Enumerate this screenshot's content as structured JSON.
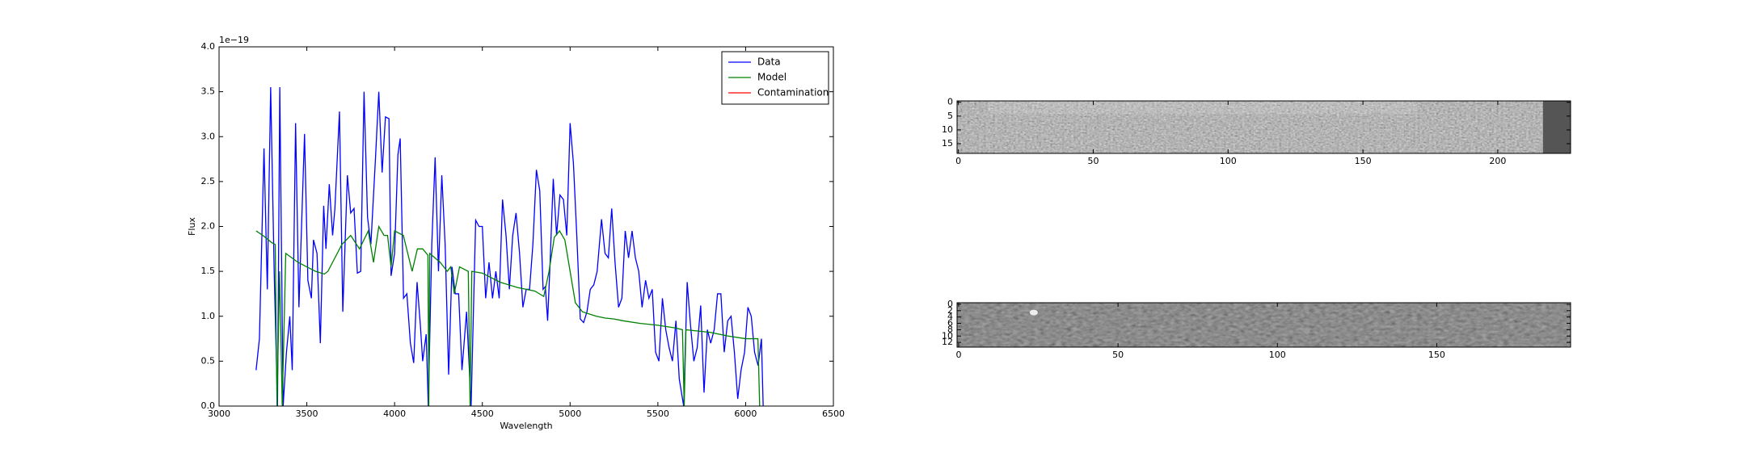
{
  "chart_data": [
    {
      "type": "line",
      "offset_text": "1e−19",
      "xlabel": "Wavelength",
      "ylabel": "Flux",
      "xlim": [
        3000,
        6500
      ],
      "ylim": [
        0,
        4.0
      ],
      "xticks": [
        3000,
        3500,
        4000,
        4500,
        5000,
        5500,
        6000,
        6500
      ],
      "yticks": [
        {
          "value": 0,
          "label": "0.0"
        },
        0.5,
        {
          "value": 1,
          "label": "1.0"
        },
        1.5,
        {
          "value": 2,
          "label": "2.0"
        },
        2.5,
        {
          "value": 3,
          "label": "3.0"
        },
        3.5,
        {
          "value": 4,
          "label": "4.0"
        }
      ],
      "legend": "upper right",
      "series": [
        {
          "name": "Data",
          "color": "#0000ff",
          "x": [
            3211,
            3230,
            3256,
            3275,
            3294,
            3314,
            3333,
            3346,
            3365,
            3384,
            3403,
            3417,
            3436,
            3455,
            3487,
            3506,
            3526,
            3538,
            3558,
            3577,
            3596,
            3609,
            3628,
            3647,
            3660,
            3686,
            3705,
            3731,
            3750,
            3769,
            3788,
            3807,
            3826,
            3846,
            3865,
            3891,
            3910,
            3929,
            3948,
            3968,
            3980,
            4000,
            4019,
            4032,
            4051,
            4070,
            4090,
            4109,
            4128,
            4147,
            4160,
            4180,
            4192,
            4212,
            4231,
            4250,
            4269,
            4288,
            4308,
            4327,
            4346,
            4365,
            4384,
            4410,
            4436,
            4462,
            4481,
            4500,
            4519,
            4538,
            4558,
            4577,
            4596,
            4615,
            4635,
            4654,
            4673,
            4692,
            4712,
            4731,
            4750,
            4769,
            4788,
            4808,
            4827,
            4846,
            4859,
            4872,
            4885,
            4904,
            4923,
            4942,
            4962,
            4981,
            5000,
            5019,
            5038,
            5058,
            5077,
            5096,
            5115,
            5135,
            5154,
            5179,
            5199,
            5218,
            5237,
            5256,
            5276,
            5295,
            5314,
            5333,
            5353,
            5372,
            5391,
            5410,
            5430,
            5449,
            5468,
            5487,
            5506,
            5526,
            5545,
            5564,
            5583,
            5603,
            5622,
            5647,
            5667,
            5686,
            5705,
            5724,
            5744,
            5763,
            5782,
            5801,
            5821,
            5840,
            5859,
            5878,
            5898,
            5917,
            5936,
            5955,
            5974,
            5994,
            6013,
            6032,
            6051,
            6071,
            6090,
            6100
          ],
          "values": [
            0.4,
            0.75,
            2.87,
            1.3,
            3.55,
            1.5,
            0.0,
            3.55,
            0.0,
            0.6,
            1.0,
            0.4,
            3.15,
            1.1,
            3.03,
            1.4,
            1.2,
            1.85,
            1.7,
            0.7,
            2.23,
            1.75,
            2.47,
            1.9,
            2.2,
            3.28,
            1.05,
            2.57,
            2.15,
            2.2,
            1.48,
            1.5,
            3.5,
            2.1,
            1.8,
            2.75,
            3.5,
            2.6,
            3.22,
            3.2,
            1.45,
            1.7,
            2.8,
            2.98,
            1.2,
            1.25,
            0.7,
            0.48,
            1.38,
            0.9,
            0.5,
            0.8,
            0.0,
            1.8,
            2.77,
            1.5,
            2.57,
            1.8,
            0.35,
            1.55,
            1.25,
            1.25,
            0.4,
            1.05,
            0.0,
            2.07,
            2.0,
            2.0,
            1.2,
            1.6,
            1.2,
            1.5,
            1.2,
            2.3,
            1.9,
            1.3,
            1.9,
            2.15,
            1.7,
            1.1,
            1.3,
            1.3,
            1.8,
            2.63,
            2.4,
            1.3,
            1.33,
            0.95,
            1.55,
            2.53,
            1.9,
            2.35,
            2.3,
            1.9,
            3.15,
            2.7,
            1.9,
            0.97,
            0.93,
            1.05,
            1.3,
            1.35,
            1.5,
            2.08,
            1.7,
            1.65,
            2.2,
            1.6,
            1.1,
            1.2,
            1.95,
            1.65,
            1.95,
            1.65,
            1.5,
            1.1,
            1.4,
            1.2,
            1.3,
            0.6,
            0.5,
            1.2,
            0.85,
            0.65,
            0.5,
            0.95,
            0.3,
            0.0,
            1.38,
            0.9,
            0.5,
            0.65,
            1.12,
            0.15,
            0.85,
            0.7,
            0.85,
            1.25,
            1.25,
            0.6,
            0.95,
            1.0,
            0.6,
            0.08,
            0.4,
            0.6,
            1.1,
            1.0,
            0.6,
            0.45,
            0.75,
            0.0
          ]
        },
        {
          "name": "Model",
          "color": "#008000",
          "x": [
            3211,
            3250,
            3300,
            3320,
            3330,
            3345,
            3360,
            3380,
            3450,
            3550,
            3600,
            3620,
            3700,
            3750,
            3800,
            3850,
            3880,
            3910,
            3940,
            3960,
            3980,
            4000,
            4050,
            4100,
            4130,
            4160,
            4190,
            4195,
            4200,
            4260,
            4300,
            4320,
            4340,
            4370,
            4420,
            4430,
            4440,
            4500,
            4600,
            4700,
            4800,
            4850,
            4880,
            4910,
            4940,
            4970,
            5000,
            5030,
            5070,
            5150,
            5200,
            5250,
            5300,
            5400,
            5500,
            5600,
            5640,
            5650,
            5660,
            5800,
            5900,
            6000,
            6070,
            6080
          ],
          "values": [
            1.95,
            1.9,
            1.82,
            1.8,
            0.0,
            1.5,
            0.0,
            1.7,
            1.6,
            1.5,
            1.47,
            1.5,
            1.8,
            1.9,
            1.75,
            1.95,
            1.6,
            2.0,
            1.9,
            1.9,
            1.55,
            1.95,
            1.9,
            1.5,
            1.75,
            1.75,
            1.68,
            0.0,
            1.7,
            1.6,
            1.5,
            1.55,
            1.25,
            1.55,
            1.5,
            0.0,
            1.5,
            1.48,
            1.38,
            1.32,
            1.28,
            1.22,
            1.5,
            1.88,
            1.95,
            1.85,
            1.5,
            1.15,
            1.05,
            1.0,
            0.98,
            0.97,
            0.95,
            0.92,
            0.9,
            0.87,
            0.85,
            0.0,
            0.85,
            0.82,
            0.78,
            0.75,
            0.75,
            0.0
          ]
        },
        {
          "name": "Contamination",
          "color": "#ff0000",
          "x": [],
          "values": []
        }
      ]
    },
    {
      "type": "image",
      "xlim": [
        -0.5,
        227
      ],
      "ylim": [
        18.5,
        -0.5
      ],
      "xticks": [
        0,
        50,
        100,
        150,
        200
      ],
      "yticks": [
        0,
        5,
        10,
        15
      ]
    },
    {
      "type": "image",
      "xlim": [
        -0.5,
        192
      ],
      "ylim": [
        13.5,
        -0.5
      ],
      "xticks": [
        0,
        50,
        100,
        150
      ],
      "yticks": [
        0,
        2,
        4,
        6,
        8,
        10,
        12
      ]
    }
  ]
}
